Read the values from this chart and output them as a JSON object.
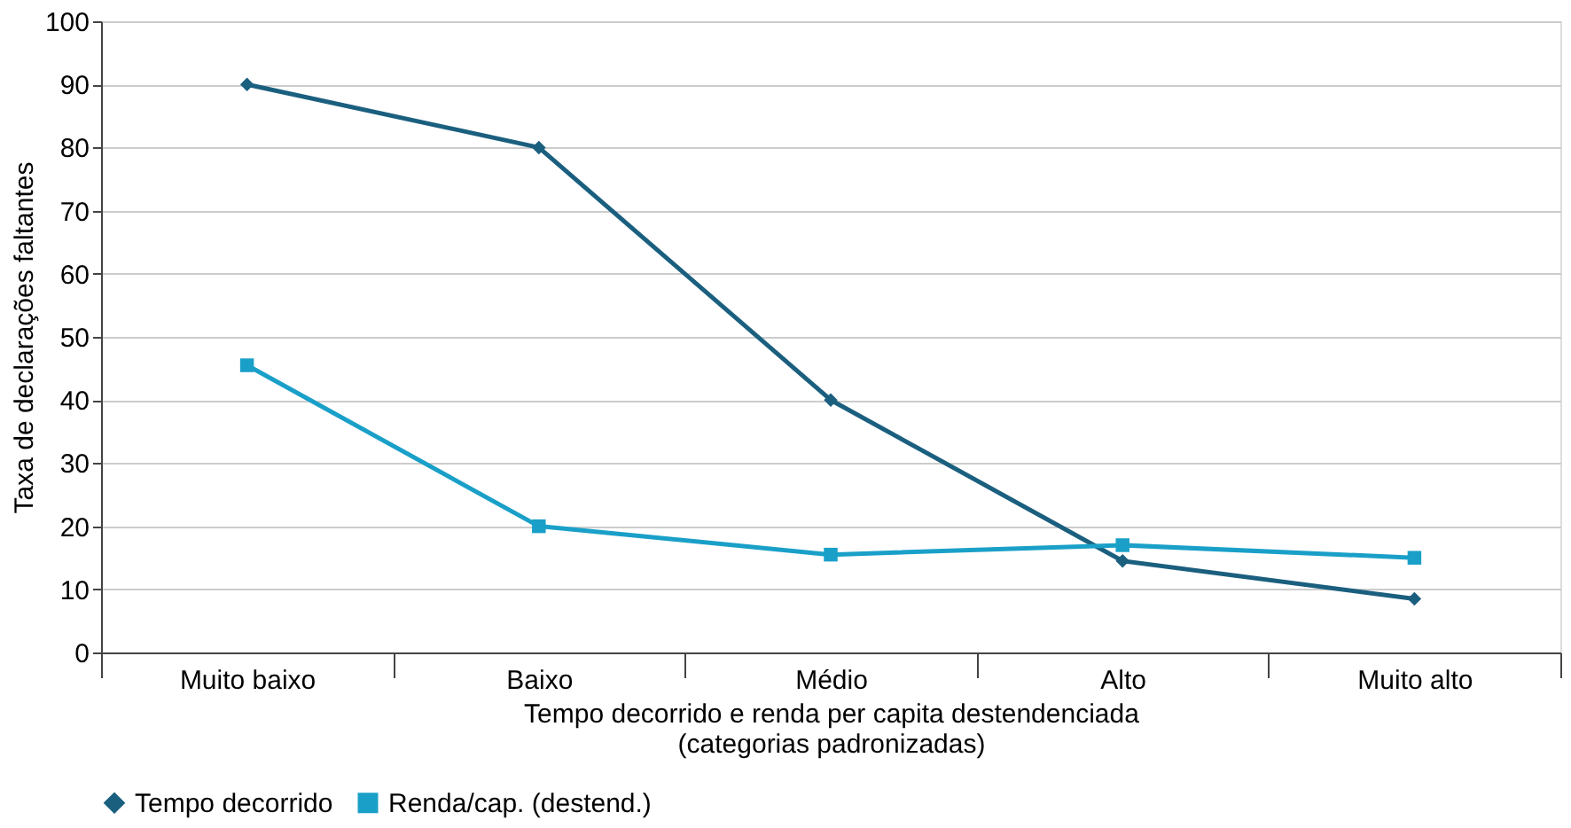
{
  "chart_data": {
    "type": "line",
    "categories": [
      "Muito baixo",
      "Baixo",
      "Médio",
      "Alto",
      "Muito alto"
    ],
    "xlabel": "Tempo decorrido e renda per capita destendenciada\n(categorias padronizadas)",
    "ylabel": "Taxa de declarações faltantes",
    "ylim": [
      0,
      100
    ],
    "yticks": [
      0,
      10,
      20,
      30,
      40,
      50,
      60,
      70,
      80,
      90,
      100
    ],
    "grid": "y",
    "legend": "bottom",
    "series": [
      {
        "name": "Tempo decorrido",
        "color": "#1b5f7f",
        "marker": "diamond",
        "values": [
          90,
          80,
          40,
          14.5,
          8.5
        ]
      },
      {
        "name": "Renda/cap. (destend.)",
        "color": "#1aa0c8",
        "marker": "square",
        "values": [
          45.5,
          20,
          15.5,
          17,
          15
        ]
      }
    ]
  }
}
